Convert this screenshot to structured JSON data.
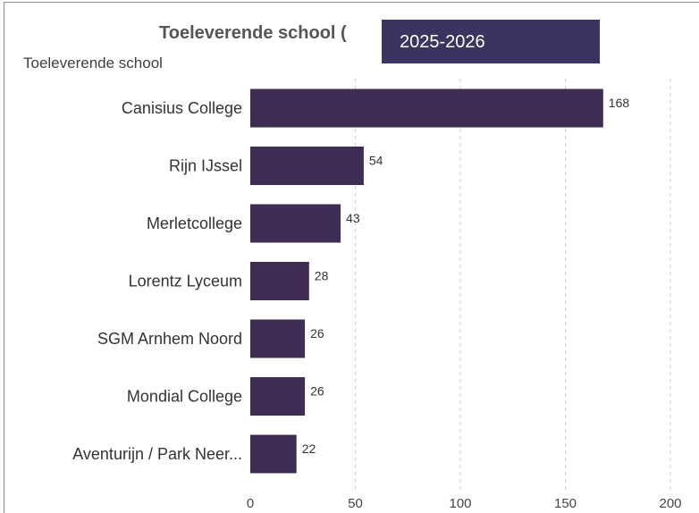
{
  "header": {
    "title": "Toeleverende school (",
    "year_selector": "2025-2026"
  },
  "colors": {
    "bar": "#3f2d55",
    "year_badge": "#3a3560",
    "grid": "#cfcfcf"
  },
  "chart_data": {
    "type": "bar",
    "orientation": "horizontal",
    "title": "Toeleverende school (",
    "ylabel": "Toeleverende school",
    "xlabel": "",
    "categories": [
      "Canisius College",
      "Rijn IJssel",
      "Merletcollege",
      "Lorentz Lyceum",
      "SGM Arnhem Noord",
      "Mondial College",
      "Aventurijn / Park Neer..."
    ],
    "values": [
      168,
      54,
      43,
      28,
      26,
      26,
      22
    ],
    "data_labels": [
      "168",
      "54",
      "43",
      "28",
      "26",
      "26",
      "22"
    ],
    "xlim": [
      0,
      200
    ],
    "x_ticks": [
      0,
      50,
      100,
      150,
      200
    ],
    "x_tick_labels": [
      "0",
      "50",
      "100",
      "150",
      "200"
    ],
    "grid": "vertical dashed",
    "legend": "none"
  }
}
